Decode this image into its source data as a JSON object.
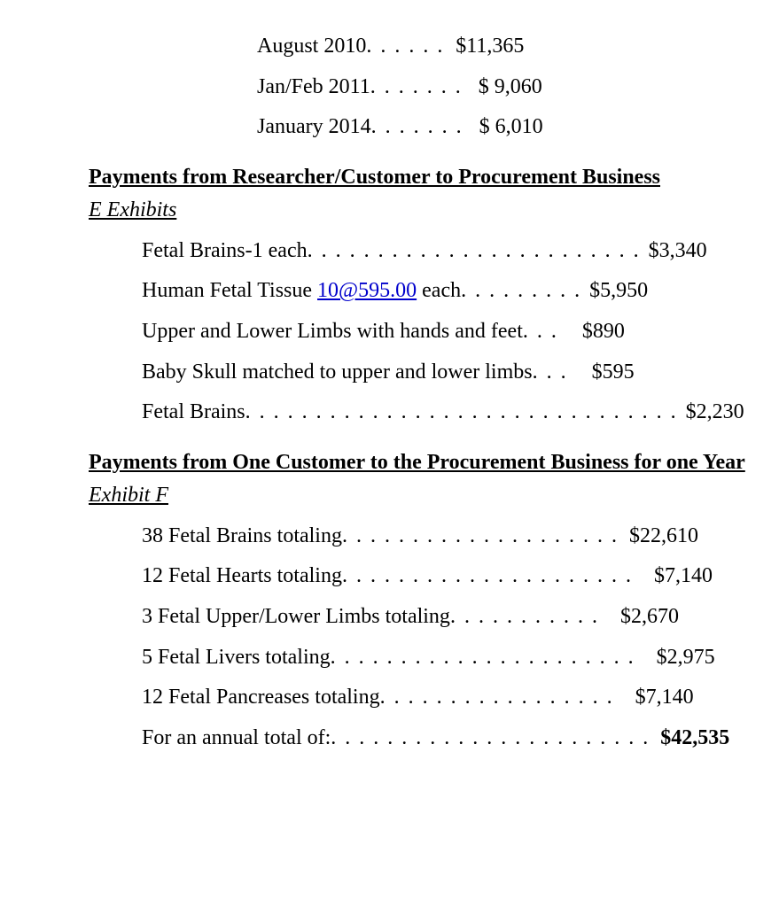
{
  "top_rows": [
    {
      "label": "August 2010",
      "leader": "  . . . . . .  ",
      "value": "$11,365"
    },
    {
      "label": "Jan/Feb 2011",
      "leader": " . . . . . . .  ",
      "value": "$ 9,060"
    },
    {
      "label": "January 2014",
      "leader": " . . . . . . .  ",
      "value": "$ 6,010"
    }
  ],
  "section1": {
    "heading": "Payments from Researcher/Customer to Procurement Business",
    "subheading": "E Exhibits",
    "rows": [
      {
        "label": "Fetal Brains-1 each",
        "leader": "  . . . . . . . . . . . . . . . . . . . . . . . . ",
        "value": "$3,340"
      },
      {
        "label_pre": "Human Fetal Tissue ",
        "label_link": "10@595.00",
        "label_post": " each",
        "leader": " . . . . . . . . . ",
        "value": "$5,950"
      },
      {
        "label": "Upper and Lower Limbs with hands and feet",
        "leader": " . . .   ",
        "value": "$890"
      },
      {
        "label": "Baby Skull matched to upper and lower limbs",
        "leader": " . . . ",
        "value": "$595"
      },
      {
        "label": "Fetal Brains",
        "leader": " . . . . . . . . . . . . . . . . . . . . . . . . . . . . . . . ",
        "value": "$2,230"
      }
    ]
  },
  "section2": {
    "heading": "Payments from One Customer to the Procurement Business for one Year",
    "subheading": "Exhibit F",
    "rows": [
      {
        "label": "38 Fetal Brains totaling",
        "leader": "  . . . . . . . . . . . . . . . . . . . .  ",
        "value": "$22,610",
        "bold": false
      },
      {
        "label": "12 Fetal Hearts totaling",
        "leader": " . . . . . . . . . . . . . . . . . . . . .   ",
        "value": "$7,140",
        "bold": false
      },
      {
        "label": "3 Fetal Upper/Lower Limbs totaling",
        "leader": " . . . . . . . . . . .   ",
        "value": "$2,670",
        "bold": false
      },
      {
        "label": "5 Fetal Livers totaling",
        "leader": " . . . . . . . . . . . . . . . . . . . . . .   ",
        "value": "$2,975",
        "bold": false
      },
      {
        "label": "12 Fetal Pancreases totaling",
        "leader": " . . . . . . . . . . . . . . . . .   ",
        "value": "$7,140",
        "bold": false
      },
      {
        "label": "For an annual total of:",
        "leader": " . . . . . . . . . . . . . . . . . . . . . . . ",
        "value": "$42,535",
        "bold": true
      }
    ]
  }
}
